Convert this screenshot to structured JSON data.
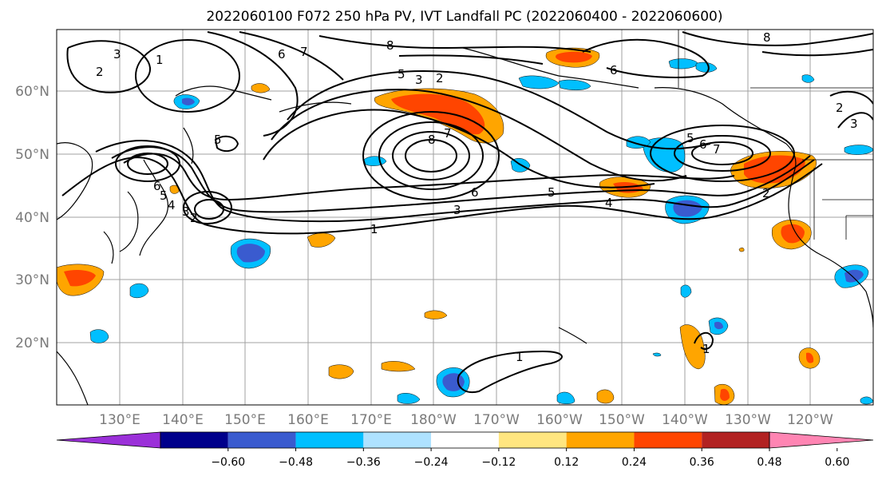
{
  "title": "2022060100 F072 250 hPa PV, IVT Landfall PC (2022060400 - 2022060600)",
  "lat_labels": [
    "60°N",
    "50°N",
    "40°N",
    "30°N",
    "20°N"
  ],
  "lon_labels": [
    "130°E",
    "140°E",
    "150°E",
    "160°E",
    "170°E",
    "180°W",
    "170°W",
    "160°W",
    "150°W",
    "140°W",
    "130°W",
    "120°W"
  ],
  "colorbar": {
    "colors": [
      "#9b30d9",
      "#00008b",
      "#3a5bcf",
      "#00bfff",
      "#aee2ff",
      "#ffffff",
      "#ffe680",
      "#ffa500",
      "#ff4500",
      "#b22222",
      "#ff85b3"
    ],
    "ticks": [
      "−0.60",
      "−0.48",
      "−0.36",
      "−0.24",
      "−0.12",
      "0.12",
      "0.24",
      "0.36",
      "0.48",
      "0.60"
    ]
  },
  "contour_labels": [
    "2",
    "3",
    "1",
    "6",
    "7",
    "8",
    "5",
    "3",
    "2",
    "6",
    "5",
    "8",
    "7",
    "6",
    "5",
    "4",
    "3",
    "1",
    "6",
    "5",
    "4",
    "3",
    "2",
    "1",
    "5",
    "6",
    "7",
    "2",
    "8",
    "3",
    "2",
    "1"
  ]
}
